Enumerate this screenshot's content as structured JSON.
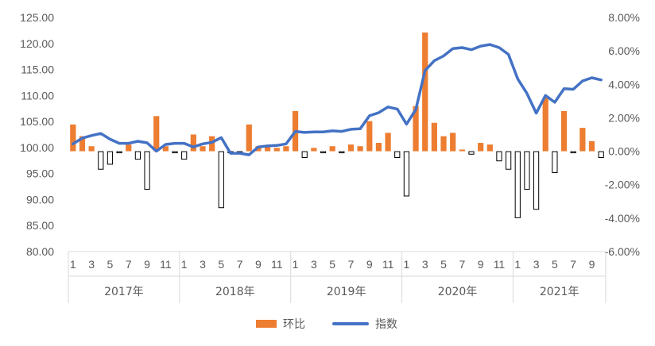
{
  "chart_data": {
    "type": "bar+line",
    "title": "",
    "left_axis": {
      "ylim": [
        80,
        125
      ],
      "ticks": [
        "80.00",
        "85.00",
        "90.00",
        "95.00",
        "100.00",
        "105.00",
        "110.00",
        "115.00",
        "120.00",
        "125.00"
      ],
      "tick_values": [
        80,
        85,
        90,
        95,
        100,
        105,
        110,
        115,
        120,
        125
      ]
    },
    "right_axis": {
      "ylim": [
        -6,
        8
      ],
      "ticks": [
        "-6.00%",
        "-4.00%",
        "-2.00%",
        "0.00%",
        "2.00%",
        "4.00%",
        "6.00%",
        "8.00%"
      ],
      "tick_values": [
        -6,
        -4,
        -2,
        0,
        2,
        4,
        6,
        8
      ]
    },
    "x_month_labels": [
      "1",
      "3",
      "5",
      "7",
      "9",
      "11",
      "1",
      "3",
      "5",
      "7",
      "9",
      "11",
      "1",
      "3",
      "5",
      "7",
      "9",
      "11",
      "1",
      "3",
      "5",
      "7",
      "9",
      "11",
      "1",
      "3",
      "5",
      "7",
      "9"
    ],
    "years": [
      {
        "label": "2017年",
        "months": 12
      },
      {
        "label": "2018年",
        "months": 12
      },
      {
        "label": "2019年",
        "months": 12
      },
      {
        "label": "2020年",
        "months": 12
      },
      {
        "label": "2021年",
        "months": 10
      }
    ],
    "series": [
      {
        "name": "环比",
        "axis": "right",
        "kind": "bar",
        "color": "#ED7D31",
        "negative_style": "outline",
        "values": [
          1.6,
          0.9,
          0.3,
          -1.1,
          -0.8,
          -0.1,
          0.4,
          -0.5,
          -2.3,
          2.1,
          0.3,
          -0.1,
          -0.5,
          1.0,
          0.3,
          0.9,
          -3.4,
          -0.1,
          -0.1,
          1.6,
          0.3,
          0.3,
          0.2,
          0.3,
          2.4,
          -0.4,
          0.2,
          -0.1,
          0.3,
          -0.1,
          0.4,
          0.3,
          1.8,
          0.5,
          1.1,
          -0.4,
          -2.7,
          2.7,
          7.1,
          1.7,
          0.9,
          1.1,
          0.1,
          -0.2,
          0.5,
          0.4,
          -0.6,
          -1.1,
          -4.0,
          -2.3,
          -3.5,
          3.2,
          -1.3,
          2.4,
          -0.1,
          1.4,
          0.6,
          -0.4
        ]
      },
      {
        "name": "指数",
        "axis": "left",
        "kind": "line",
        "color": "#4472C4",
        "values": [
          100.7,
          101.8,
          102.3,
          102.7,
          101.6,
          100.8,
          100.8,
          101.2,
          100.9,
          99.3,
          100.6,
          100.8,
          100.8,
          100.1,
          100.7,
          101.0,
          101.9,
          98.9,
          98.9,
          98.6,
          100.1,
          100.3,
          100.4,
          100.7,
          103.1,
          102.9,
          103.0,
          103.0,
          103.2,
          103.1,
          103.5,
          103.6,
          106.1,
          106.7,
          107.8,
          107.4,
          104.5,
          107.3,
          114.8,
          116.7,
          117.6,
          119.0,
          119.2,
          118.8,
          119.5,
          119.8,
          119.2,
          117.9,
          113.2,
          110.4,
          106.6,
          110.0,
          108.7,
          111.3,
          111.2,
          112.8,
          113.4,
          113.0
        ]
      }
    ],
    "legend": {
      "position": "bottom-center"
    },
    "grid": false
  }
}
